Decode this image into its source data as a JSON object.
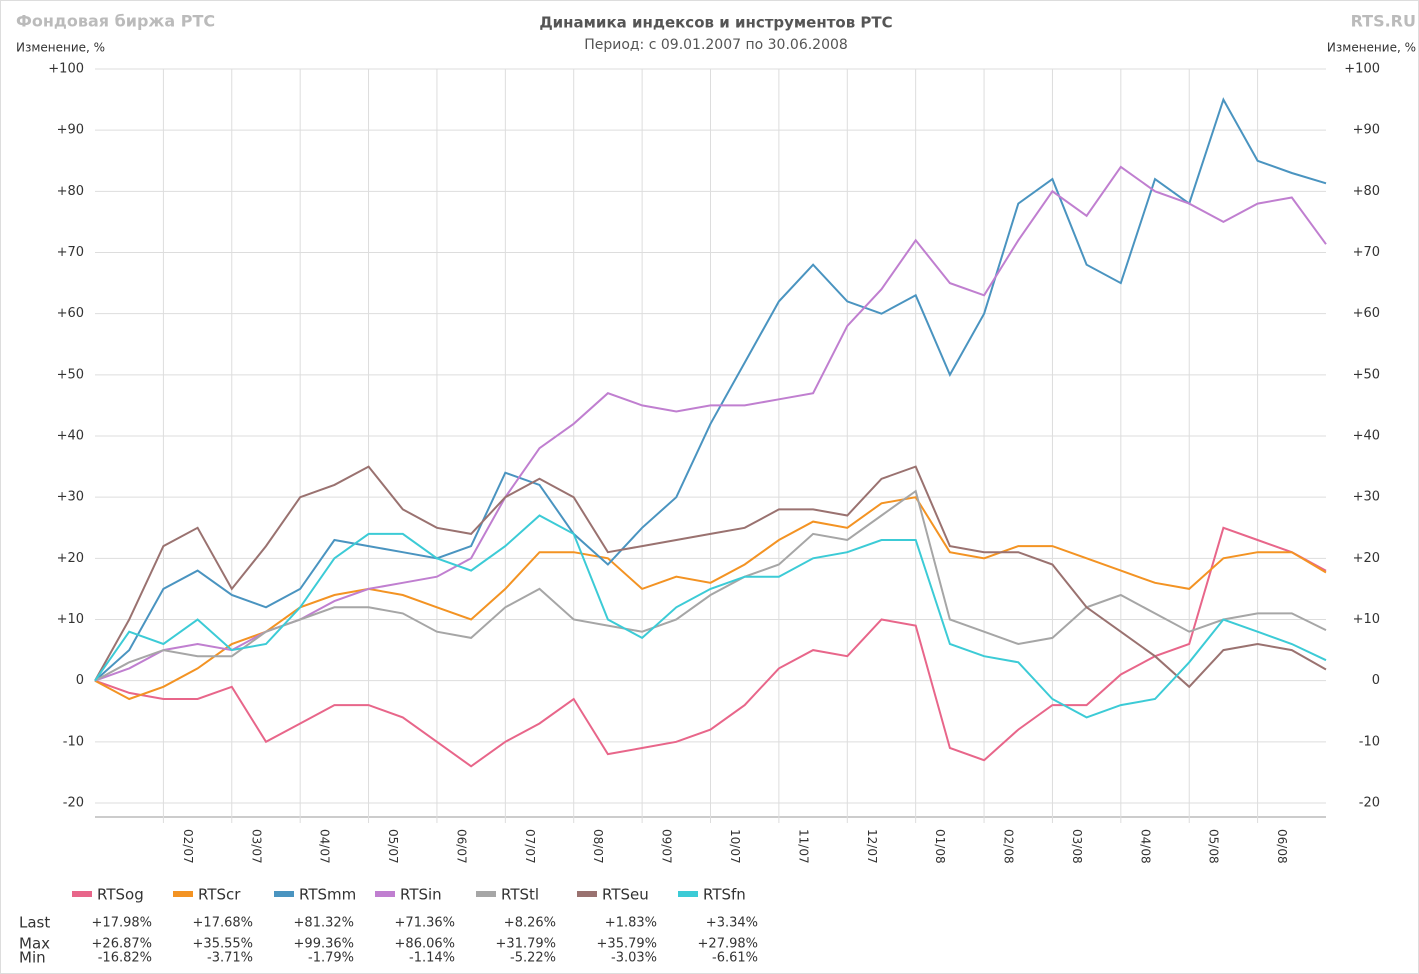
{
  "chart_data": {
    "type": "line",
    "title": "Динамика индексов и инструментов РТС",
    "subtitle": "Период: с 09.01.2007 по 30.06.2008",
    "source": "Фондовая биржа РТС",
    "brand": "RTS.RU",
    "y_label": "Изменение, %",
    "y2_label": "Изменение, %",
    "categories": [
      null,
      null,
      "02/07",
      null,
      "03/07",
      null,
      "04/07",
      null,
      "05/07",
      null,
      "06/07",
      null,
      "07/07",
      null,
      "08/07",
      null,
      "09/07",
      null,
      "10/07",
      null,
      "11/07",
      null,
      "12/07",
      null,
      "01/08",
      null,
      "02/08",
      null,
      "03/08",
      null,
      "04/08",
      null,
      "05/08",
      null,
      "06/08",
      null,
      null
    ],
    "ylim": [
      -20,
      100
    ],
    "yticks": [
      {
        "value": 100,
        "label": "+100"
      },
      {
        "value": 90,
        "label": "+90"
      },
      {
        "value": 80,
        "label": "+80"
      },
      {
        "value": 70,
        "label": "+70"
      },
      {
        "value": 60,
        "label": "+60"
      },
      {
        "value": 50,
        "label": "+50"
      },
      {
        "value": 40,
        "label": "+40"
      },
      {
        "value": 30,
        "label": "+30"
      },
      {
        "value": 20,
        "label": "+20"
      },
      {
        "value": 10,
        "label": "+10"
      },
      0,
      -10,
      -20
    ],
    "grid": true,
    "series": [
      {
        "name": "RTSog",
        "color": "#e8668a",
        "values": [
          0,
          -2,
          -3,
          -3,
          -1,
          -10,
          -7,
          -4,
          -4,
          -6,
          -10,
          -14,
          -10,
          -7,
          -3,
          -12,
          -11,
          -10,
          -8,
          -4,
          2,
          5,
          4,
          10,
          9,
          -11,
          -13,
          -8,
          -4,
          -4,
          1,
          4,
          6,
          25,
          23,
          21,
          17.98
        ]
      },
      {
        "name": "RTScr",
        "color": "#f39323",
        "values": [
          0,
          -3,
          -1,
          2,
          6,
          8,
          12,
          14,
          15,
          14,
          12,
          10,
          15,
          21,
          21,
          20,
          15,
          17,
          16,
          19,
          23,
          26,
          25,
          29,
          30,
          21,
          20,
          22,
          22,
          20,
          18,
          16,
          15,
          20,
          21,
          21,
          17.68
        ]
      },
      {
        "name": "RTSmm",
        "color": "#4a94c0",
        "values": [
          0,
          5,
          15,
          18,
          14,
          12,
          15,
          23,
          22,
          21,
          20,
          22,
          34,
          32,
          24,
          19,
          25,
          30,
          42,
          52,
          62,
          68,
          62,
          60,
          63,
          50,
          60,
          78,
          82,
          68,
          65,
          82,
          78,
          95,
          85,
          83,
          81.32
        ]
      },
      {
        "name": "RTSin",
        "color": "#c07fd0",
        "values": [
          0,
          2,
          5,
          6,
          5,
          8,
          10,
          13,
          15,
          16,
          17,
          20,
          30,
          38,
          42,
          47,
          45,
          44,
          45,
          45,
          46,
          47,
          58,
          64,
          72,
          65,
          63,
          72,
          80,
          76,
          84,
          80,
          78,
          75,
          78,
          79,
          71.36
        ]
      },
      {
        "name": "RTStl",
        "color": "#a6a6a6",
        "values": [
          0,
          3,
          5,
          4,
          4,
          8,
          10,
          12,
          12,
          11,
          8,
          7,
          12,
          15,
          10,
          9,
          8,
          10,
          14,
          17,
          19,
          24,
          23,
          27,
          31,
          10,
          8,
          6,
          7,
          12,
          14,
          11,
          8,
          10,
          11,
          11,
          8.26
        ]
      },
      {
        "name": "RTSeu",
        "color": "#9a7270",
        "values": [
          0,
          10,
          22,
          25,
          15,
          22,
          30,
          32,
          35,
          28,
          25,
          24,
          30,
          33,
          30,
          21,
          22,
          23,
          24,
          25,
          28,
          28,
          27,
          33,
          35,
          22,
          21,
          21,
          19,
          12,
          8,
          4,
          -1,
          5,
          6,
          5,
          1.83
        ]
      },
      {
        "name": "RTSfn",
        "color": "#3ccbd6",
        "values": [
          0,
          8,
          6,
          10,
          5,
          6,
          12,
          20,
          24,
          24,
          20,
          18,
          22,
          27,
          24,
          10,
          7,
          12,
          15,
          17,
          17,
          20,
          21,
          23,
          23,
          6,
          4,
          3,
          -3,
          -6,
          -4,
          -3,
          3,
          10,
          8,
          6,
          3.34
        ]
      }
    ],
    "stats": {
      "rows": [
        "Last",
        "Max",
        "Min"
      ],
      "values": [
        [
          "+17.98%",
          "+17.68%",
          "+81.32%",
          "+71.36%",
          "+8.26%",
          "+1.83%",
          "+3.34%"
        ],
        [
          "+26.87%",
          "+35.55%",
          "+99.36%",
          "+86.06%",
          "+31.79%",
          "+35.79%",
          "+27.98%"
        ],
        [
          "-16.82%",
          "-3.71%",
          "-1.79%",
          "-1.14%",
          "-5.22%",
          "-3.03%",
          "-6.61%"
        ]
      ]
    }
  }
}
